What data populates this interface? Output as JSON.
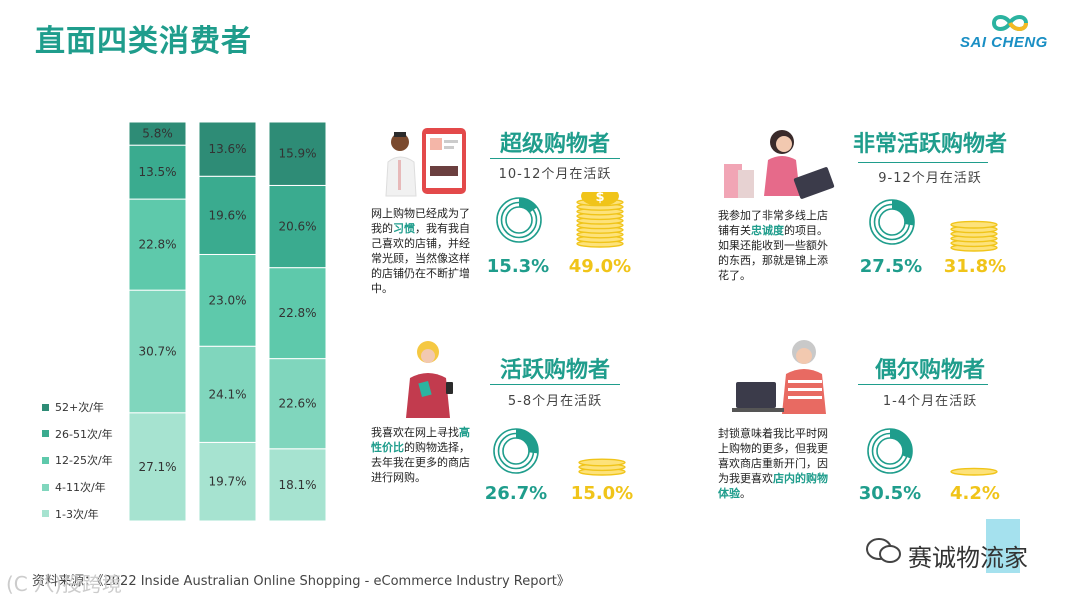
{
  "page": {
    "title": "直面四类消费者",
    "logo_text": "SAI CHENG",
    "source": "资料来源：《2022 Inside Australian Online Shopping - eCommerce Industry Report》",
    "watermark_brand": "赛诚物流家",
    "watermark_corner": "(C 八)投跨境"
  },
  "chart_data": {
    "type": "bar",
    "stacked": true,
    "orientation": "vertical",
    "unit": "%",
    "categories": [
      "",
      "",
      ""
    ],
    "series": [
      {
        "name": "1-3次/年",
        "values": [
          27.1,
          19.7,
          18.1
        ],
        "color": "#a6e3d0"
      },
      {
        "name": "4-11次/年",
        "values": [
          30.7,
          24.1,
          22.6
        ],
        "color": "#80d6bd"
      },
      {
        "name": "12-25次/年",
        "values": [
          22.8,
          23.0,
          22.8
        ],
        "color": "#5ec9ab"
      },
      {
        "name": "26-51次/年",
        "values": [
          13.5,
          19.6,
          20.6
        ],
        "color": "#3aab8f"
      },
      {
        "name": "52+次/年",
        "values": [
          5.8,
          13.6,
          15.9
        ],
        "color": "#2e8c76"
      }
    ],
    "ylim": [
      0,
      100
    ],
    "legend_position": "left"
  },
  "cards": [
    {
      "id": "super",
      "title": "超级购物者",
      "subtitle": "10-12个月在活跃",
      "quote_parts": [
        "网上购物已经成为了我的",
        "习惯",
        "，我有我自己喜欢的店铺，并经常光顾，当然像这样的店铺仍在不断扩增中。"
      ],
      "donut_pct": 15.3,
      "donut_label": "15.3%",
      "coins_pct": 49.0,
      "coins_label": "49.0%"
    },
    {
      "id": "very-active",
      "title": "非常活跃购物者",
      "subtitle": "9-12个月在活跃",
      "quote_parts": [
        "我参加了非常多线上店铺有关",
        "忠诚度",
        "的项目。如果还能收到一些额外的东西，那就是锦上添花了。"
      ],
      "donut_pct": 27.5,
      "donut_label": "27.5%",
      "coins_pct": 31.8,
      "coins_label": "31.8%"
    },
    {
      "id": "active",
      "title": "活跃购物者",
      "subtitle": "5-8个月在活跃",
      "quote_parts": [
        "我喜欢在网上寻找",
        "高性价比",
        "的购物选择，去年我在更多的商店进行网购。"
      ],
      "donut_pct": 26.7,
      "donut_label": "26.7%",
      "coins_pct": 15.0,
      "coins_label": "15.0%"
    },
    {
      "id": "occasional",
      "title": "偶尔购物者",
      "subtitle": "1-4个月在活跃",
      "quote_parts": [
        "封锁意味着我比平时网上购物的更多，但我更喜欢商店重新开门，因为我更喜欢",
        "店内的购物体验",
        "。"
      ],
      "donut_pct": 30.5,
      "donut_label": "30.5%",
      "coins_pct": 4.2,
      "coins_label": "4.2%"
    }
  ],
  "colors": {
    "accent": "#1f9d8c",
    "yellow": "#f0c419"
  }
}
